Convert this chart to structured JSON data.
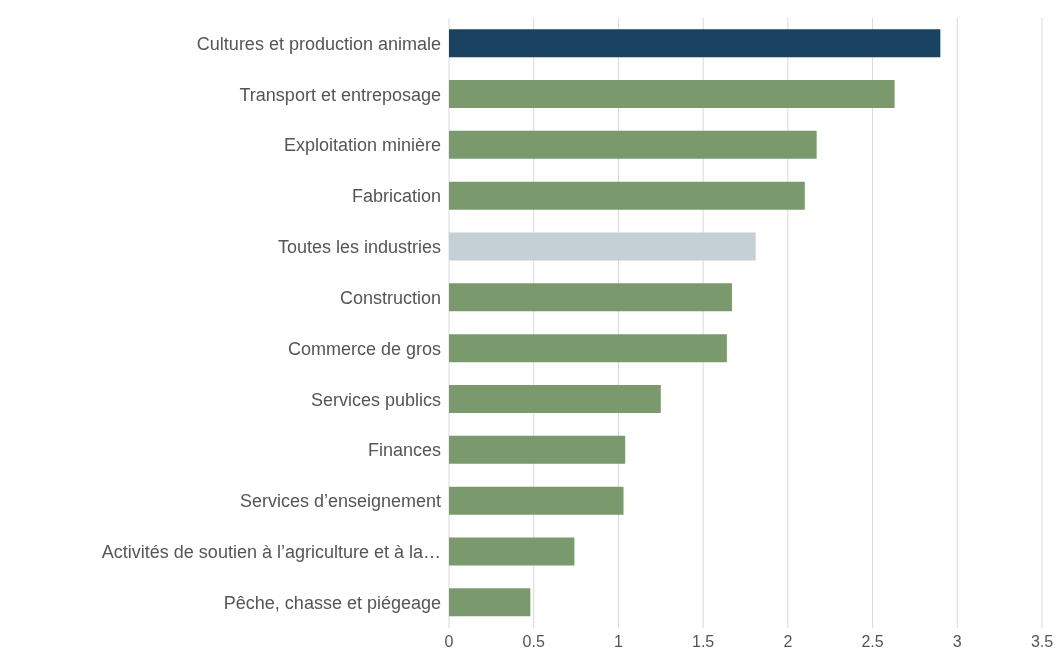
{
  "chart_data": {
    "type": "bar",
    "orientation": "horizontal",
    "categories": [
      "Cultures et production animale",
      "Transport et entreposage",
      "Exploitation minière",
      "Fabrication",
      "Toutes les industries",
      "Construction",
      "Commerce de gros",
      "Services publics",
      "Finances",
      "Services d’enseignement",
      "Activités de soutien à l’agriculture et à la…",
      "Pêche, chasse et piégeage"
    ],
    "values": [
      2.9,
      2.63,
      2.17,
      2.1,
      1.81,
      1.67,
      1.64,
      1.25,
      1.04,
      1.03,
      0.74,
      0.48
    ],
    "colors": [
      "#1a4361",
      "#7a9a6e",
      "#7a9a6e",
      "#7a9a6e",
      "#c5cfd6",
      "#7a9a6e",
      "#7a9a6e",
      "#7a9a6e",
      "#7a9a6e",
      "#7a9a6e",
      "#7a9a6e",
      "#7a9a6e"
    ],
    "xlim": [
      0,
      3.5
    ],
    "xticks": [
      0,
      0.5,
      1,
      1.5,
      2,
      2.5,
      3,
      3.5
    ],
    "grid": "x",
    "legend": false
  }
}
